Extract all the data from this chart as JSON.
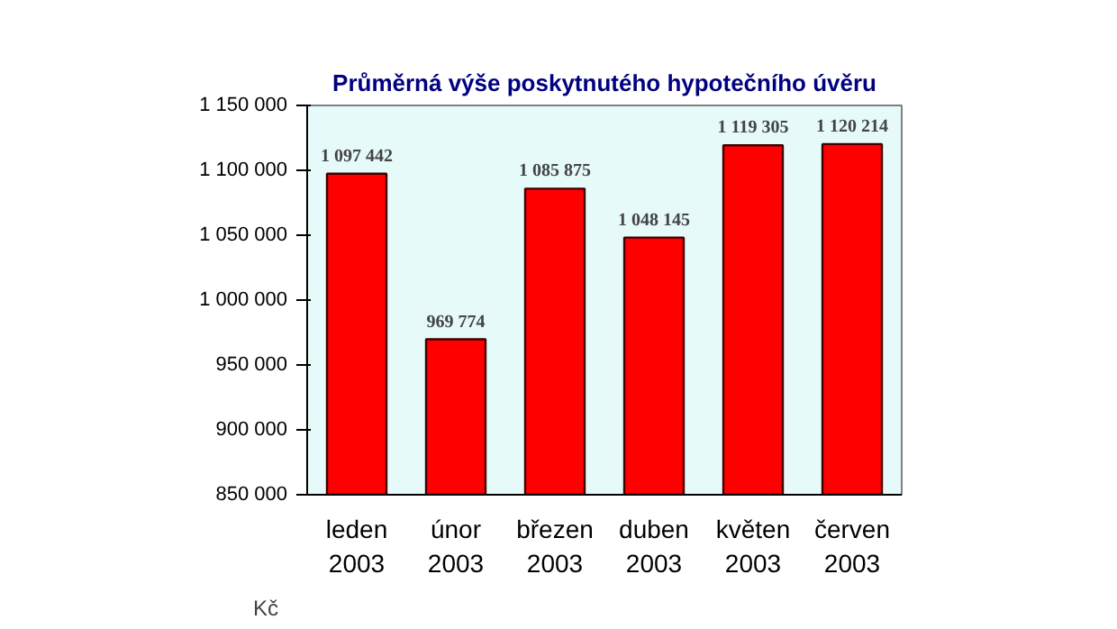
{
  "chart_data": {
    "type": "bar",
    "title": "Průměrná výše poskytnutého hypotečního úvěru",
    "categories": [
      "leden\n2003",
      "únor\n2003",
      "březen\n2003",
      "duben\n2003",
      "květen\n2003",
      "červen\n2003"
    ],
    "values": [
      1097442,
      969774,
      1085875,
      1048145,
      1119305,
      1120214
    ],
    "value_labels": [
      "1 097 442",
      "969 774",
      "1 085 875",
      "1 048 145",
      "1 119 305",
      "1 120 214"
    ],
    "color": "#ff0000",
    "ylim": [
      850000,
      1150000
    ],
    "yticks": [
      {
        "value": 850000,
        "label": "850 000"
      },
      {
        "value": 900000,
        "label": "900 000"
      },
      {
        "value": 950000,
        "label": "950 000"
      },
      {
        "value": 1000000,
        "label": "1 000 000"
      },
      {
        "value": 1050000,
        "label": "1 050 000"
      },
      {
        "value": 1100000,
        "label": "1 100 000"
      },
      {
        "value": 1150000,
        "label": "1 150 000"
      }
    ],
    "annotations": [
      "Kč"
    ],
    "grid": false
  }
}
